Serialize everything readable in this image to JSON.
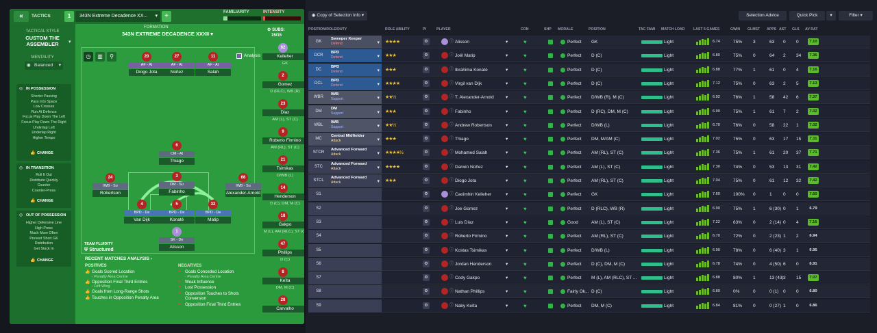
{
  "tactics": {
    "back_label": "«",
    "tactics_label": "TACTICS",
    "slot_number": "1",
    "tactic_name": "343N Extreme Decadence XX...",
    "add_label": "+",
    "familiarity_label": "FAMILIARITY",
    "intensity_label": "INTENSITY",
    "familiarity_value": 0.1,
    "intensity_value": 0.05
  },
  "sidebar": {
    "tactical_style_label": "TACTICAL STYLE",
    "style_name_1": "CUSTOM THE",
    "style_name_2": "ASSEMBLER",
    "mentality_label": "MENTALITY",
    "mentality_value": "Balanced",
    "in_possession": {
      "title": "IN POSSESSION",
      "items": [
        "Shorter Passing",
        "Pass Into Space",
        "Low Crosses",
        "Run At Defence",
        "Focus Play Down The Left",
        "Focus Play Down The Right",
        "Underlap Left",
        "Underlap Right",
        "Higher Tempo"
      ],
      "change": "CHANGE"
    },
    "in_transition": {
      "title": "IN TRANSITION",
      "items": [
        "Roll It Out",
        "Distribute Quickly",
        "Counter",
        "Counter-Press"
      ],
      "change": "CHANGE"
    },
    "out_of_possession": {
      "title": "OUT OF POSSESSION",
      "items": [
        "Higher Defensive Line",
        "High Press",
        "Much More Often",
        "Prevent Short GK",
        "Distribution",
        "Get Stuck In"
      ],
      "change": "CHANGE"
    }
  },
  "formation": {
    "label": "FORMATION",
    "name": "343N EXTREME DECADENCE XXXII",
    "analysis_label": "Analysis",
    "subs_label": "SUBS:",
    "subs_value": "15/15",
    "team_fluidity_label": "TEAM FLUIDITY",
    "team_fluidity_value": "Structured",
    "players": [
      {
        "num": "20",
        "role": "AF - At",
        "name": "Diogo Jota",
        "role_color": "purple"
      },
      {
        "num": "27",
        "role": "AF - At",
        "name": "Núñez",
        "role_color": "purple"
      },
      {
        "num": "11",
        "role": "AF - At",
        "name": "Salah",
        "role_color": "purple"
      },
      {
        "num": "6",
        "role": "CM - At",
        "name": "Thiago",
        "role_color": "gray"
      },
      {
        "num": "24",
        "role": "IWB - Su",
        "name": "Robertson",
        "role_color": "gray"
      },
      {
        "num": "3",
        "role": "DM - Su",
        "name": "Fabinho",
        "role_color": "gray"
      },
      {
        "num": "66",
        "role": "IWB - Su",
        "name": "Alexander-Arnold",
        "role_color": "gray"
      },
      {
        "num": "4",
        "role": "BPD - De",
        "name": "Van Dijk",
        "role_color": "blue"
      },
      {
        "num": "5",
        "role": "BPD - De",
        "name": "Konaté",
        "role_color": "blue"
      },
      {
        "num": "32",
        "role": "BPD - De",
        "name": "Matip",
        "role_color": "blue"
      },
      {
        "num": "1",
        "role": "SK - De",
        "name": "Alisson",
        "role_color": "gray"
      }
    ],
    "subs": [
      {
        "num": "62",
        "name": "Kelleher",
        "pos": "GK",
        "gk": true
      },
      {
        "num": "2",
        "name": "Gomez",
        "pos": "D (RLC), WB (R)"
      },
      {
        "num": "23",
        "name": "Diaz",
        "pos": "AM (L), ST (C)"
      },
      {
        "num": "9",
        "name": "Roberto Firmino",
        "pos": "AM (RL), ST (C)"
      },
      {
        "num": "21",
        "name": "Tsimikas",
        "pos": "D/WB (L)"
      },
      {
        "num": "14",
        "name": "Henderson",
        "pos": "D (C), DM, M (C)"
      },
      {
        "num": "18",
        "name": "Gakpo",
        "pos": "M (L), AM (RLC), ST (C)"
      },
      {
        "num": "47",
        "name": "Phillips",
        "pos": "D (C)"
      },
      {
        "num": "8",
        "name": "Keïta",
        "pos": "DM, M (C)"
      },
      {
        "num": "28",
        "name": "Carvalho",
        "pos": ""
      }
    ]
  },
  "analysis": {
    "title": "RECENT MATCHES ANALYSIS",
    "positives_label": "POSITIVES",
    "negatives_label": "NEGATIVES",
    "positives": [
      {
        "text": "Goals Scored Location",
        "sub": "- Penalty Area Centre"
      },
      {
        "text": "Opposition Final Third Entries",
        "sub": "- Left Wing"
      },
      {
        "text": "Goals from Long-Range Shots",
        "sub": ""
      },
      {
        "text": "Touches in Opposition Penalty Area",
        "sub": ""
      }
    ],
    "negatives": [
      {
        "text": "Goals Conceded Location",
        "sub": "- Penalty Area Centre"
      },
      {
        "text": "Weak Influence",
        "sub": ""
      },
      {
        "text": "Lost Possession",
        "sub": ""
      },
      {
        "text": "Opposition Touches to Shots Conversion",
        "sub": ""
      },
      {
        "text": "Opposition Final Third Entries",
        "sub": ""
      }
    ]
  },
  "toolbar": {
    "copy_selection": "Copy of Selection Info",
    "selection_advice": "Selection Advice",
    "quick_pick": "Quick Pick",
    "filter": "Filter"
  },
  "columns": [
    "POSITION/ROLE/DUTY",
    "ROLE ABILITY",
    "PI",
    "PLAYER",
    "CON",
    "SHP",
    "MORALE",
    "POSITION",
    "TAC FAMI",
    "MATCH LOAD",
    "LAST 5 GAMES",
    "GWIN",
    "GLMST",
    "APPS",
    "AST",
    "GLS",
    "AV RAT"
  ],
  "rows": [
    {
      "pos": "GK",
      "role": "Sweeper Keeper",
      "duty": "Defend",
      "stars": "★★★★",
      "player": "Alisson",
      "gk": true,
      "morale": "Perfect",
      "position": "GK",
      "load": "Light",
      "form": "6.74",
      "gwin": "75%",
      "glmst": "3",
      "apps": "63",
      "ast": "0",
      "gls": "0",
      "avr": "7.10"
    },
    {
      "pos": "DCR",
      "role": "BPD",
      "duty": "Defend",
      "stars": "★★★",
      "player": "Joël Matip",
      "morale": "Perfect",
      "position": "D (C)",
      "load": "Light",
      "form": "6.80",
      "gwin": "75%",
      "glmst": "0",
      "apps": "64",
      "ast": "2",
      "gls": "34",
      "avr": "7.36"
    },
    {
      "pos": "DC",
      "role": "BPD",
      "duty": "Defend",
      "stars": "★★★",
      "player": "Ibrahima Konaté",
      "morale": "Perfect",
      "position": "D (C)",
      "load": "Light",
      "form": "6.88",
      "gwin": "77%",
      "glmst": "1",
      "apps": "61",
      "ast": "0",
      "gls": "4",
      "avr": "7.16"
    },
    {
      "pos": "DCL",
      "role": "BPD",
      "duty": "Defend",
      "stars": "★★★★",
      "player": "Virgil van Dijk",
      "morale": "Perfect",
      "position": "D (C)",
      "load": "Light",
      "form": "7.12",
      "gwin": "75%",
      "glmst": "0",
      "apps": "63",
      "ast": "2",
      "gls": "5",
      "avr": "7.13"
    },
    {
      "pos": "WBR",
      "role": "IWB",
      "duty": "Support",
      "stars": "★★½",
      "player": "T. Alexander-Arnold",
      "morale": "Perfect",
      "position": "D/WB (R), M (C)",
      "load": "Light",
      "form": "6.92",
      "gwin": "76%",
      "glmst": "1",
      "apps": "58",
      "ast": "42",
      "gls": "6",
      "avr": "7.37"
    },
    {
      "pos": "DM",
      "role": "DM",
      "duty": "Support",
      "stars": "★★★",
      "player": "Fabinho",
      "morale": "Perfect",
      "position": "D (RC), DM, M (C)",
      "load": "Light",
      "form": "6.90",
      "gwin": "75%",
      "glmst": "1",
      "apps": "61",
      "ast": "7",
      "gls": "2",
      "avr": "7.02"
    },
    {
      "pos": "WBL",
      "role": "IWB",
      "duty": "Support",
      "stars": "★★½",
      "player": "Andrew Robertson",
      "morale": "Perfect",
      "position": "D/WB (L)",
      "load": "Light",
      "form": "6.70",
      "gwin": "76%",
      "glmst": "0",
      "apps": "58",
      "ast": "22",
      "gls": "1",
      "avr": "7.02"
    },
    {
      "pos": "MC",
      "role": "Central Midfielder",
      "duty": "Attack",
      "stars": "★★★",
      "player": "Thiago",
      "morale": "Perfect",
      "position": "DM, M/AM (C)",
      "load": "Light",
      "form": "7.02",
      "gwin": "75%",
      "glmst": "0",
      "apps": "63",
      "ast": "17",
      "gls": "15",
      "avr": "7.11"
    },
    {
      "pos": "STCR",
      "role": "Advanced Forward",
      "duty": "Attack",
      "stars": "★★★★½",
      "player": "Mohamed Salah",
      "morale": "Perfect",
      "position": "AM (RL), ST (C)",
      "load": "Light",
      "form": "7.36",
      "gwin": "75%",
      "glmst": "1",
      "apps": "61",
      "ast": "20",
      "gls": "37",
      "avr": "7.71"
    },
    {
      "pos": "STC",
      "role": "Advanced Forward",
      "duty": "Attack",
      "stars": "★★★★",
      "player": "Darwin Núñez",
      "morale": "Perfect",
      "position": "AM (L), ST (C)",
      "load": "Light",
      "form": "7.30",
      "gwin": "74%",
      "glmst": "0",
      "apps": "53",
      "ast": "13",
      "gls": "31",
      "avr": "7.42"
    },
    {
      "pos": "STCL",
      "role": "Advanced Forward",
      "duty": "Attack",
      "stars": "★★★",
      "player": "Diogo Jota",
      "morale": "Perfect",
      "position": "AM (RL), ST (C)",
      "load": "Light",
      "form": "7.04",
      "gwin": "75%",
      "glmst": "0",
      "apps": "61",
      "ast": "12",
      "gls": "32",
      "avr": "7.42"
    },
    {
      "pos": "S1",
      "role": "",
      "duty": "",
      "stars": "",
      "player": "Caoimhin Kelleher",
      "gk": true,
      "morale": "Perfect",
      "position": "GK",
      "load": "Light",
      "form": "7.60",
      "gwin": "100%",
      "glmst": "0",
      "apps": "1",
      "ast": "0",
      "gls": "0",
      "avr": "7.60"
    },
    {
      "pos": "S2",
      "role": "",
      "duty": "",
      "stars": "",
      "player": "Joe Gomez",
      "morale": "Perfect",
      "position": "D (RLC), WB (R)",
      "load": "Light",
      "form": "6.90",
      "gwin": "75%",
      "glmst": "1",
      "apps": "6 (30)",
      "ast": "0",
      "gls": "1",
      "avr": "6.79"
    },
    {
      "pos": "S3",
      "role": "",
      "duty": "",
      "stars": "",
      "player": "Luis Díaz",
      "morale": "Good",
      "position": "AM (L), ST (C)",
      "load": "Light",
      "form": "7.22",
      "gwin": "63%",
      "glmst": "0",
      "apps": "2 (14)",
      "ast": "0",
      "gls": "4",
      "avr": "7.16"
    },
    {
      "pos": "S4",
      "role": "",
      "duty": "",
      "stars": "",
      "player": "Roberto Firmino",
      "morale": "Perfect",
      "position": "AM (RL), ST (C)",
      "load": "Light",
      "form": "6.70",
      "gwin": "72%",
      "glmst": "0",
      "apps": "2 (23)",
      "ast": "1",
      "gls": "2",
      "avr": "6.94"
    },
    {
      "pos": "S5",
      "role": "",
      "duty": "",
      "stars": "",
      "player": "Kostas Tsimikas",
      "morale": "Perfect",
      "position": "D/WB (L)",
      "load": "Light",
      "form": "6.90",
      "gwin": "78%",
      "glmst": "0",
      "apps": "6 (40)",
      "ast": "3",
      "gls": "1",
      "avr": "6.95"
    },
    {
      "pos": "S6",
      "role": "",
      "duty": "",
      "stars": "",
      "player": "Jordan Henderson",
      "morale": "Perfect",
      "position": "D (C), DM, M (C)",
      "load": "Light",
      "form": "6.78",
      "gwin": "74%",
      "glmst": "0",
      "apps": "4 (50)",
      "ast": "6",
      "gls": "0",
      "avr": "6.91"
    },
    {
      "pos": "S7",
      "role": "",
      "duty": "",
      "stars": "",
      "player": "Cody Gakpo",
      "morale": "Perfect",
      "position": "M (L), AM (RLC), ST ...",
      "load": "Light",
      "form": "6.88",
      "gwin": "80%",
      "glmst": "1",
      "apps": "13 (43)",
      "ast": "3",
      "gls": "15",
      "avr": "7.07"
    },
    {
      "pos": "S8",
      "role": "",
      "duty": "",
      "stars": "",
      "player": "Nathan Phillips",
      "morale": "Fairly Ok...",
      "position": "D (C)",
      "load": "Light",
      "form": "6.80",
      "gwin": "0%",
      "glmst": "0",
      "apps": "0 (1)",
      "ast": "0",
      "gls": "0",
      "avr": "6.80"
    },
    {
      "pos": "S9",
      "role": "",
      "duty": "",
      "stars": "",
      "player": "Naby Keïta",
      "morale": "Perfect",
      "position": "DM, M (C)",
      "load": "Light",
      "form": "6.84",
      "gwin": "81%",
      "glmst": "0",
      "apps": "0 (27)",
      "ast": "1",
      "gls": "0",
      "avr": "6.86"
    }
  ]
}
